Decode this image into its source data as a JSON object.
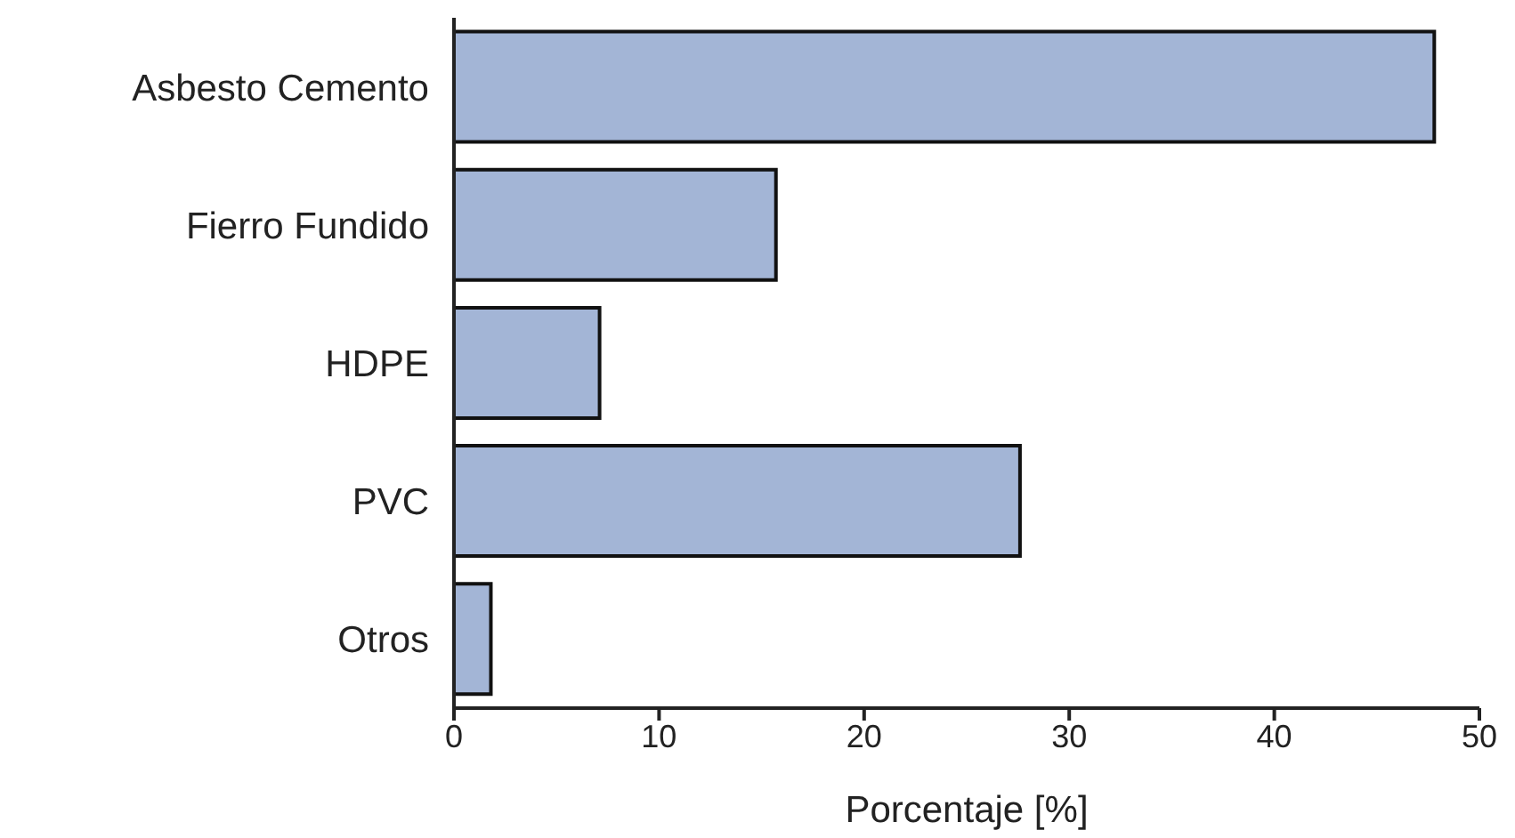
{
  "chart_data": {
    "type": "bar",
    "orientation": "horizontal",
    "xlabel": "Porcentaje [%]",
    "categories": [
      "Asbesto Cemento",
      "Fierro Fundido",
      "HDPE",
      "PVC",
      "Otros"
    ],
    "values": [
      47.8,
      15.7,
      7.1,
      27.6,
      1.8
    ],
    "color": "#a3b5d6",
    "xlim": [
      0,
      50
    ],
    "xticks": [
      0,
      10,
      20,
      30,
      40,
      50
    ],
    "grid": false,
    "legend": false
  }
}
